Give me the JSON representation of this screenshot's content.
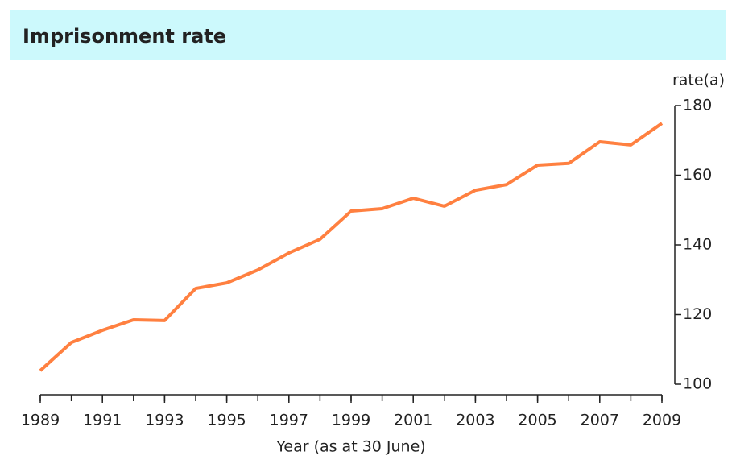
{
  "chart_data": {
    "type": "line",
    "title": "Imprisonment rate",
    "y_label": "rate(a)",
    "x_label": "Year (as at 30 June)",
    "x": [
      1989,
      1990,
      1991,
      1992,
      1993,
      1994,
      1995,
      1996,
      1997,
      1998,
      1999,
      2000,
      2001,
      2002,
      2003,
      2004,
      2005,
      2006,
      2007,
      2008,
      2009
    ],
    "series": [
      {
        "name": "Imprisonment rate",
        "color": "#ff8040",
        "values": [
          103.9,
          112,
          115.5,
          118.5,
          118.3,
          127.5,
          129.1,
          132.8,
          137.7,
          141.6,
          149.7,
          150.4,
          153.4,
          151.1,
          155.7,
          157.3,
          162.9,
          163.4,
          169.6,
          168.7,
          174.9
        ]
      }
    ],
    "xlim": [
      1989,
      2009
    ],
    "xticks": [
      1989,
      1991,
      1993,
      1995,
      1997,
      1999,
      2001,
      2003,
      2005,
      2007,
      2009
    ],
    "ylim": [
      100,
      180
    ],
    "yticks": [
      100,
      120,
      140,
      160,
      180
    ],
    "y_axis_side": "right",
    "grid": false
  }
}
